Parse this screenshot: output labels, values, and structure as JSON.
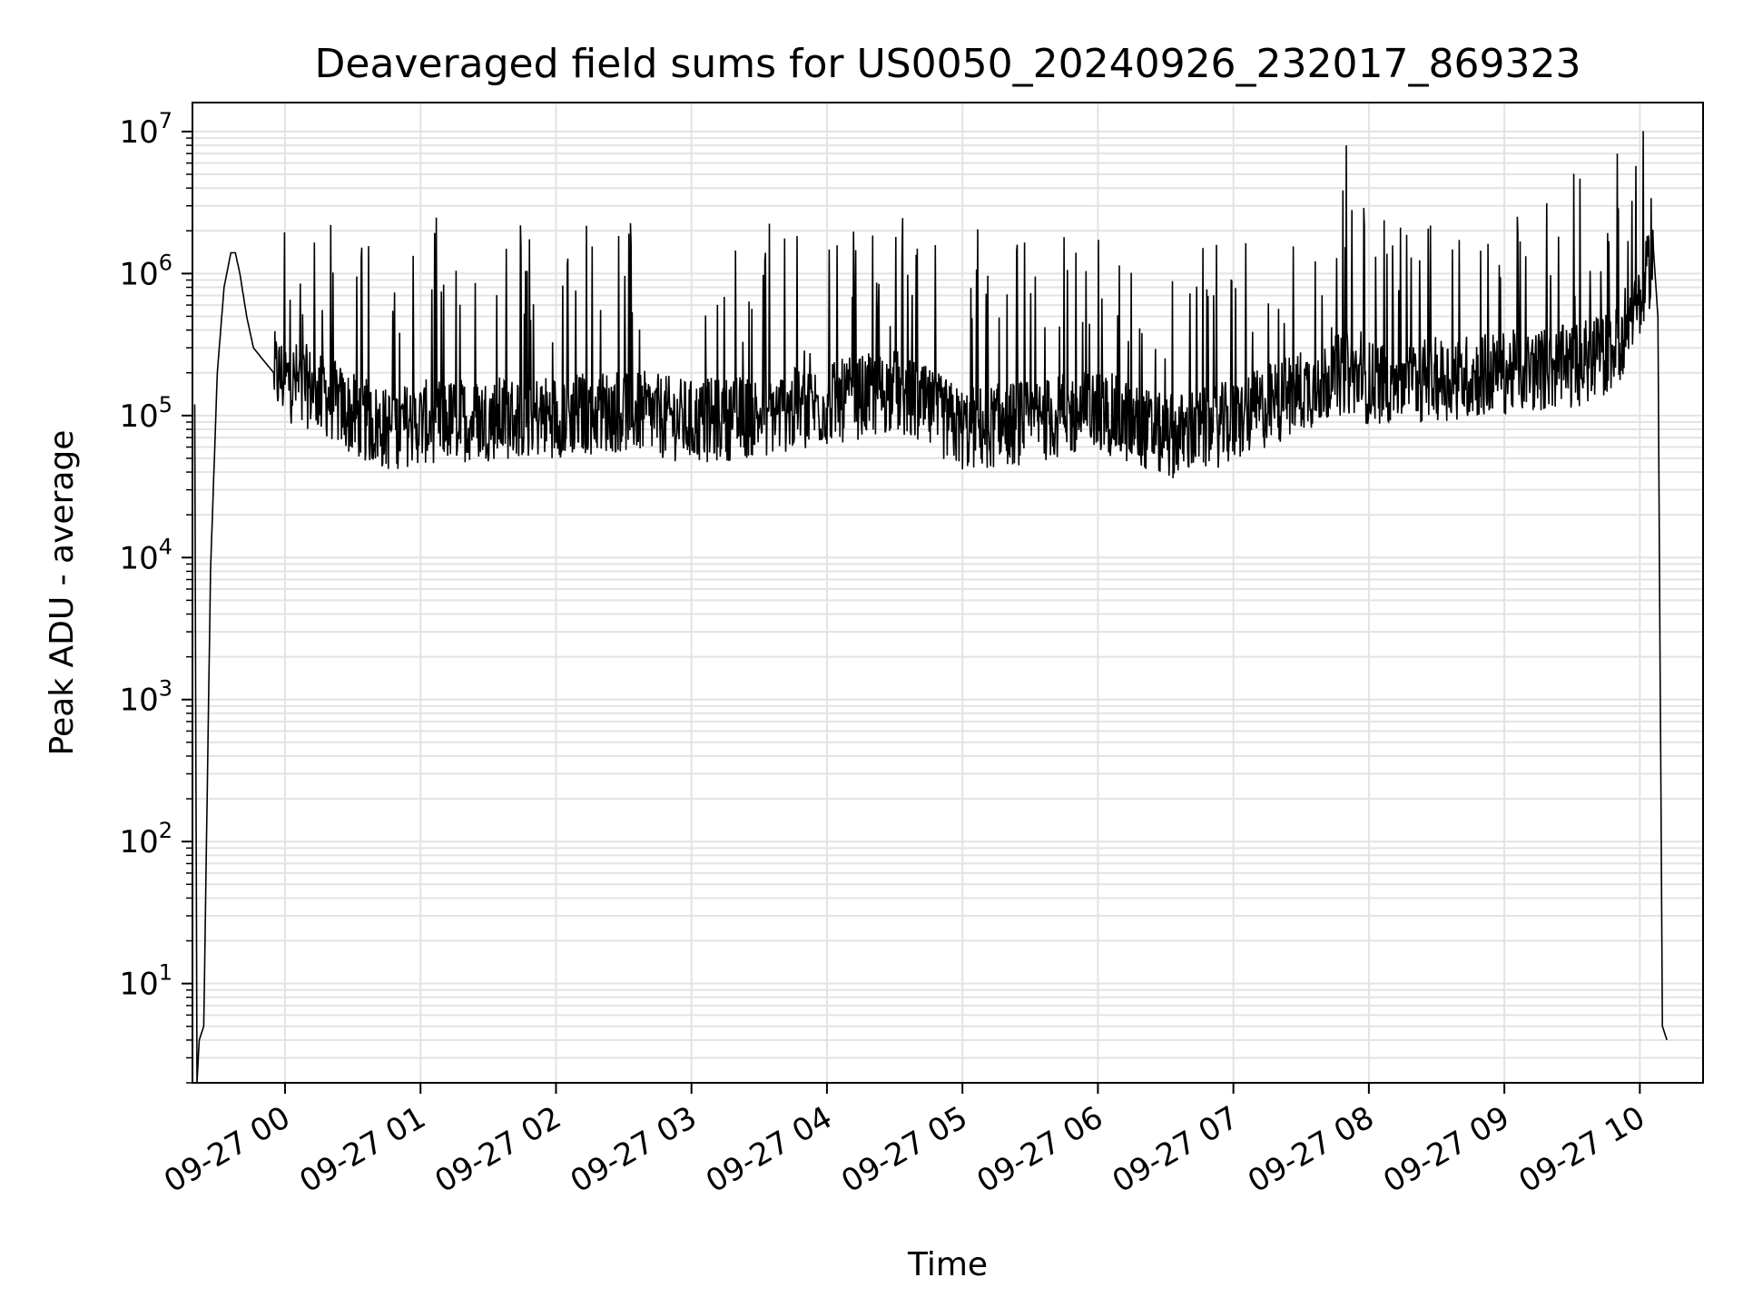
{
  "chart_data": {
    "type": "line",
    "title": "Deaveraged field sums for US0050_20240926_232017_869323",
    "xlabel": "Time",
    "ylabel": "Peak ADU - average",
    "yscale": "log",
    "ylim": [
      2,
      16000000
    ],
    "grid": true,
    "x_tick_labels": [
      "09-27 00",
      "09-27 01",
      "09-27 02",
      "09-27 03",
      "09-27 04",
      "09-27 05",
      "09-27 06",
      "09-27 07",
      "09-27 08",
      "09-27 09",
      "09-27 10"
    ],
    "y_ticks": [
      {
        "value": 10,
        "base": "10",
        "exp": "1"
      },
      {
        "value": 100,
        "base": "10",
        "exp": "2"
      },
      {
        "value": 1000,
        "base": "10",
        "exp": "3"
      },
      {
        "value": 10000,
        "base": "10",
        "exp": "4"
      },
      {
        "value": 100000,
        "base": "10",
        "exp": "5"
      },
      {
        "value": 1000000,
        "base": "10",
        "exp": "6"
      },
      {
        "value": 10000000,
        "base": "10",
        "exp": "7"
      }
    ],
    "series": [
      {
        "color": "#000000",
        "x": [
          "2024-09-26 23:20",
          "2024-09-26 23:21",
          "2024-09-26 23:22",
          "2024-09-26 23:24",
          "2024-09-26 23:27",
          "2024-09-26 23:30",
          "2024-09-26 23:33",
          "2024-09-26 23:36",
          "2024-09-26 23:38",
          "2024-09-26 23:40",
          "2024-09-26 23:43",
          "2024-09-26 23:46",
          "2024-09-26 23:50",
          "2024-09-26 23:55",
          "2024-09-27 00:00",
          "2024-09-27 00:15",
          "2024-09-27 00:30",
          "2024-09-27 00:45",
          "2024-09-27 01:00",
          "2024-09-27 01:30",
          "2024-09-27 02:00",
          "2024-09-27 02:30",
          "2024-09-27 03:00",
          "2024-09-27 03:30",
          "2024-09-27 04:00",
          "2024-09-27 04:30",
          "2024-09-27 05:00",
          "2024-09-27 05:30",
          "2024-09-27 06:00",
          "2024-09-27 06:30",
          "2024-09-27 07:00",
          "2024-09-27 07:30",
          "2024-09-27 07:50",
          "2024-09-27 08:00",
          "2024-09-27 08:30",
          "2024-09-27 09:00",
          "2024-09-27 09:30",
          "2024-09-27 09:50",
          "2024-09-27 09:55",
          "2024-09-27 10:00",
          "2024-09-27 10:03",
          "2024-09-27 10:06",
          "2024-09-27 10:08",
          "2024-09-27 10:10",
          "2024-09-27 10:12"
        ],
        "y": [
          120000,
          2,
          4,
          5,
          8000,
          200000,
          800000,
          1400000,
          1400000,
          1000000,
          500000,
          300000,
          250000,
          200000,
          180000,
          150000,
          100000,
          80000,
          90000,
          95000,
          100000,
          110000,
          90000,
          100000,
          120000,
          150000,
          80000,
          90000,
          110000,
          70000,
          90000,
          150000,
          200000,
          170000,
          180000,
          200000,
          220000,
          300000,
          500000,
          600000,
          900000,
          1500000,
          500000,
          5,
          4
        ]
      }
    ],
    "spikes": [
      {
        "x": "2024-09-27 07:50",
        "y": 8000000
      },
      {
        "x": "2024-09-27 09:50",
        "y": 7000000
      },
      {
        "x": "2024-09-27 10:05",
        "y": 3400000
      }
    ]
  }
}
